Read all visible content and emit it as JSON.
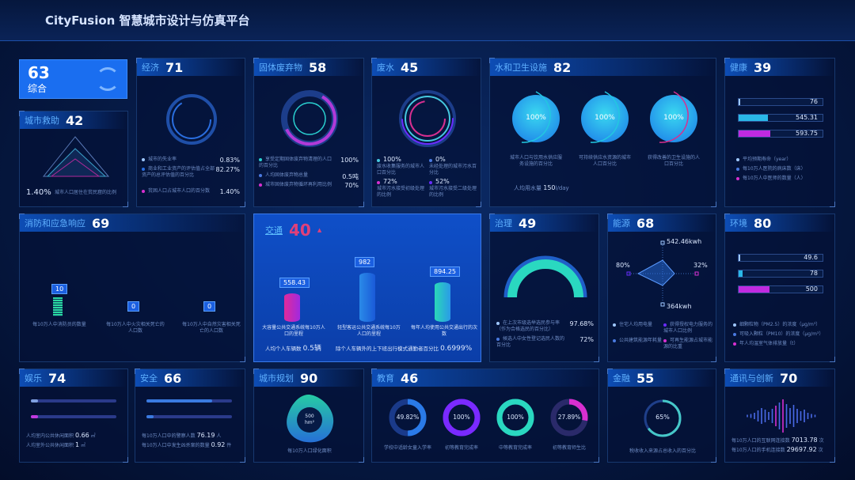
{
  "app_title": "CityFusion 智慧城市设计与仿真平台",
  "colors": {
    "accent": "#1a6ef0",
    "cyan": "#22d8d0",
    "magenta": "#d82fd0",
    "purple": "#6a2cff",
    "traffic_score": "#e0407a"
  },
  "overall": {
    "score": "63",
    "label": "综合",
    "icon": "city-logo-icon"
  },
  "rescue": {
    "name": "城市救助",
    "score": "42",
    "value": "1.40%",
    "desc": "城市人口居住在贫民窟的比例"
  },
  "economy": {
    "name": "经济",
    "score": "71",
    "items": [
      {
        "label": "城市的失业率",
        "value": "0.83%"
      },
      {
        "label": "商业和工业资产的评估值占全部资产的总评估值的百分比",
        "value": "82.27%"
      },
      {
        "label": "贫困人口占城市人口的百分数",
        "value": "1.40%"
      }
    ]
  },
  "solid_waste": {
    "name": "固体废弃物",
    "score": "58",
    "items": [
      {
        "label": "享受定期固体废弃物清理的人口的百分比",
        "value": "100%"
      },
      {
        "label": "人均固体废弃物总量",
        "value": "0.5吨"
      },
      {
        "label": "城市固体废弃物循环再利用比例",
        "value": "70%"
      }
    ]
  },
  "wastewater": {
    "name": "废水",
    "score": "45",
    "items": [
      {
        "value": "100%",
        "label": "废水收集服务的城市人口百分比"
      },
      {
        "value": "0%",
        "label": "未经处理的城市污水百分比"
      },
      {
        "value": "72%",
        "label": "城市污水接受初级处理的比例"
      },
      {
        "value": "52%",
        "label": "城市污水接受二级处理的比例"
      }
    ]
  },
  "water": {
    "name": "水和卫生设施",
    "score": "82",
    "gauges": [
      {
        "value": "100%",
        "label": "城市人口与饮用水供应服务设施的百分比"
      },
      {
        "value": "100%",
        "label": "可持续供应水资源的城市人口百分比"
      },
      {
        "value": "100%",
        "label": "获得改善的卫生设施的人口百分比"
      }
    ],
    "usage_label": "人均用水量",
    "usage_value": "150",
    "usage_unit": "l/day"
  },
  "health": {
    "name": "健康",
    "score": "39",
    "bars": [
      {
        "value": "76",
        "fill": 0.02
      },
      {
        "value": "545.31",
        "fill": 0.35
      },
      {
        "value": "593.75",
        "fill": 0.38
      }
    ],
    "legend": [
      "平均预期寿命（year）",
      "每10万人医院的病床数（床）",
      "每10万人中医师的数量（人）"
    ]
  },
  "fire": {
    "name": "消防和应急响应",
    "score": "69",
    "items": [
      {
        "value": "10",
        "label": "每10万人中消防员的数量"
      },
      {
        "value": "0",
        "label": "每10万人中火灾相关死亡的人口数"
      },
      {
        "value": "0",
        "label": "每10万人中自然灾害相关死亡的人口数"
      }
    ]
  },
  "traffic": {
    "name": "交通",
    "score": "40",
    "trend": "▲",
    "items": [
      {
        "value": "558.43",
        "label": "大容量公共交通系统每10万人口的里程"
      },
      {
        "value": "982",
        "label": "轻型客运公共交通系统每10万人口的里程"
      },
      {
        "value": "894.25",
        "label": "每年人均使用公共交通出行的次数"
      }
    ],
    "car_label": "人均个人车辆数",
    "car_value": "0.5辆",
    "mode_label": "除个人车辆外的上下班出行模式通勤者百分比",
    "mode_value": "0.6999%"
  },
  "governance": {
    "name": "治理",
    "score": "49",
    "items": [
      {
        "label": "在上次市级选举选民参与率（作为合格选民的百分比）",
        "value": "97.68%"
      },
      {
        "label": "候选人中女性登记选民人数的百分比",
        "value": "72%"
      }
    ]
  },
  "energy": {
    "name": "能源",
    "score": "68",
    "radar": {
      "top": "542.46kwh",
      "right": "32%",
      "bottom": "364kwh",
      "left": "80%"
    },
    "legend": [
      "住宅人均用电量",
      "获得授权电力服务的城市人口比例",
      "公共建筑能源年耗量",
      "可再生能源占城市能源的比重"
    ]
  },
  "environment": {
    "name": "环境",
    "score": "80",
    "bars": [
      {
        "value": "49.6",
        "fill": 0.02
      },
      {
        "value": "78",
        "fill": 0.05
      },
      {
        "value": "500",
        "fill": 0.37
      }
    ],
    "legend": [
      "细颗粒物（PM2.5）的浓度（μg/m³）",
      "可吸入颗粒（PM10）的浓度（μg/m³）",
      "年人均温室气体排放量（t）"
    ]
  },
  "leisure": {
    "name": "娱乐",
    "score": "74",
    "bars": [
      0.05,
      0.07
    ],
    "items": [
      {
        "label": "人均室内公共休闲面积",
        "value": "0.66",
        "unit": "㎡"
      },
      {
        "label": "人均室外公共休闲面积",
        "value": "1",
        "unit": "㎡"
      }
    ]
  },
  "safety": {
    "name": "安全",
    "score": "66",
    "bars": [
      0.77,
      0.0
    ],
    "items": [
      {
        "label": "每10万人口中的警察人数",
        "value": "76.19",
        "unit": "人"
      },
      {
        "label": "每10万人口中发生凶杀案的数量",
        "value": "0.92",
        "unit": "件"
      }
    ]
  },
  "planning": {
    "name": "城市规划",
    "score": "90",
    "center_value": "500",
    "center_unit": "hm²",
    "label": "每10万人口绿化面积"
  },
  "education": {
    "name": "教育",
    "score": "46",
    "rings": [
      {
        "value": "49.82%",
        "fill": 0.4982,
        "label": "学校中适龄女童入学率"
      },
      {
        "value": "100%",
        "fill": 1,
        "label": "初等教育完成率"
      },
      {
        "value": "100%",
        "fill": 1,
        "label": "中等教育完成率"
      },
      {
        "value": "27.89%",
        "fill": 0.2789,
        "label": "初等教育师生比"
      }
    ]
  },
  "finance": {
    "name": "金融",
    "score": "55",
    "value": "65%",
    "fill": 0.65,
    "label": "税收收入来源占总收入的百分比"
  },
  "comm": {
    "name": "通讯与创新",
    "score": "70",
    "items": [
      {
        "label": "每10万人口的互联网连接数",
        "value": "7013.78",
        "unit": "次"
      },
      {
        "label": "每10万人口的手机连接数",
        "value": "29697.92",
        "unit": "次"
      }
    ]
  }
}
